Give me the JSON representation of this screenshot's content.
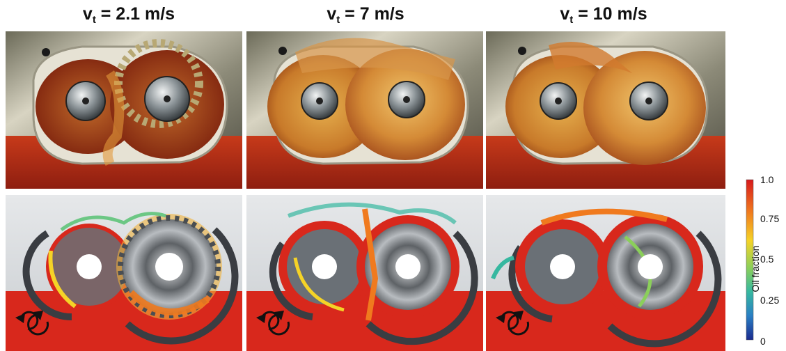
{
  "panels": [
    {
      "velocity_symbol": "v",
      "velocity_subscript": "t",
      "velocity_value": " = 2.1 m/s"
    },
    {
      "velocity_symbol": "v",
      "velocity_subscript": "t",
      "velocity_value": " = 7 m/s"
    },
    {
      "velocity_symbol": "v",
      "velocity_subscript": "t",
      "velocity_value": " = 10 m/s"
    }
  ],
  "colorbar": {
    "label": "Oil fraction",
    "ticks": [
      "1.0",
      "0.75",
      "0.5",
      "0.25",
      "0"
    ],
    "colors": [
      "#d7191c",
      "#f07a1e",
      "#f5d327",
      "#8bcf5a",
      "#36b8a0",
      "#2a7fc4",
      "#1b2b8f"
    ]
  },
  "colors": {
    "oil_red": "#d8281c",
    "air_grey": "#d9dcde",
    "housing_dark": "#3a3d42",
    "oil_photo": "#b8451a"
  },
  "icons": [
    "rotation-arrows-icon",
    "gear-icon",
    "shaft-icon"
  ]
}
